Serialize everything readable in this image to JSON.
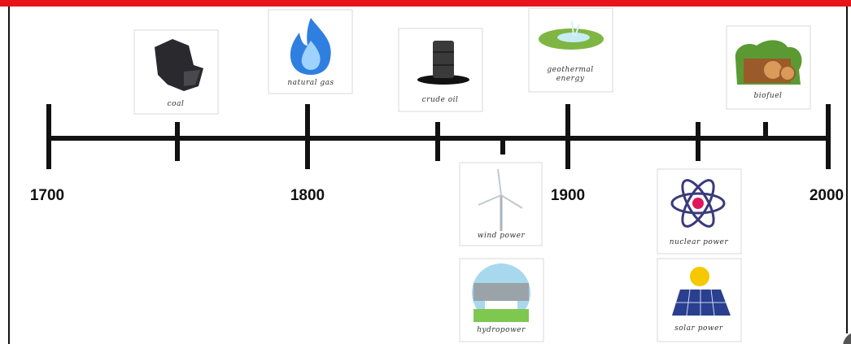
{
  "years": [
    "1700",
    "1800",
    "1900",
    "2000"
  ],
  "cards": [
    {
      "label": "coal"
    },
    {
      "label": "natural gas"
    },
    {
      "label": "crude oil"
    },
    {
      "label_lines": [
        "geothermal",
        "energy"
      ]
    },
    {
      "label": "biofuel"
    },
    {
      "label": "wind power"
    },
    {
      "label": "hydropower"
    },
    {
      "label": "nuclear power"
    },
    {
      "label": "solar power"
    }
  ]
}
